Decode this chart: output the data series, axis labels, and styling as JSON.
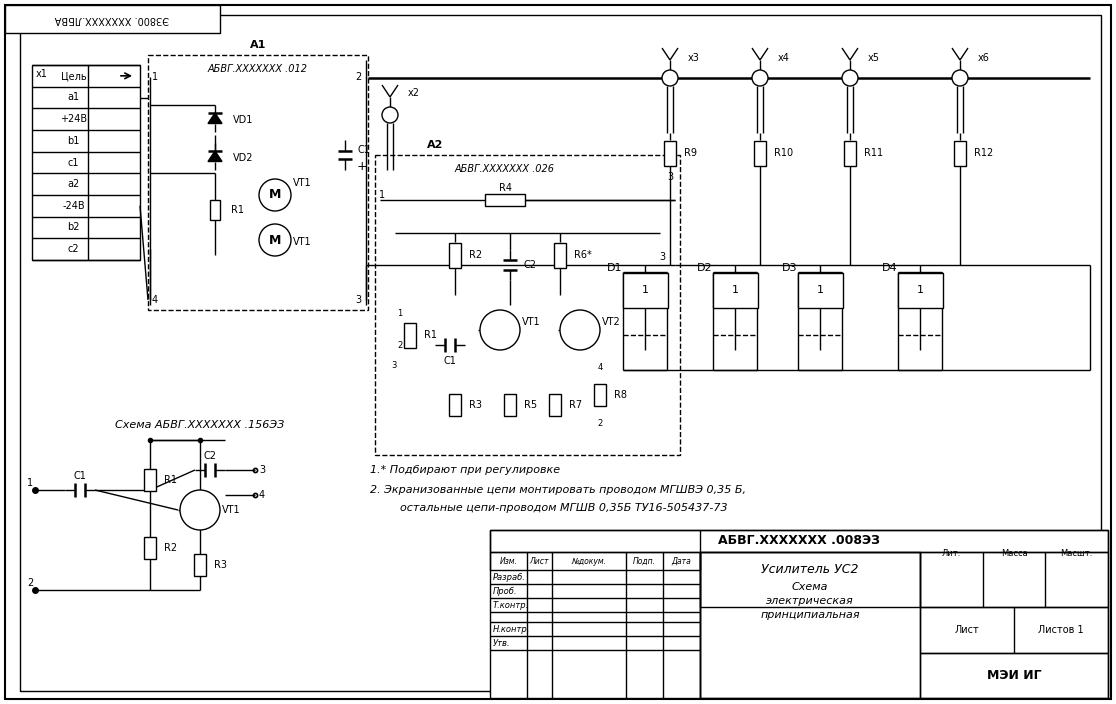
{
  "bg_color": "#ffffff",
  "line_color": "#000000",
  "fig_width": 11.16,
  "fig_height": 7.04,
  "title_box": "АБВГ.XXXXXXX .008ЭЗ",
  "title_stamp_top": "ЭЗ800. XXXXXXX.ЛБВА",
  "notes_line1": "1.* Подбирают при регулировке",
  "notes_line2": "2. Экранизованные цепи монтировать проводом МГШВЭ 0,35 Б,",
  "notes_line3": "остальные цепи-проводом МГШВ 0,35Б ТУ16-505437-73",
  "stamp_product": "Усилитель УС2",
  "stamp_type1": "Схема",
  "stamp_type2": "электрическая",
  "stamp_type3": "принципиальная",
  "stamp_org": "МЭИ ИГ",
  "stamp_sheet": "Лист",
  "stamp_sheets": "Листов 1",
  "stamp_lit": "Лит.",
  "stamp_mass": "Масса",
  "stamp_scale": "Масшт.",
  "sub_schema_title": "Схема АБВГ.XXXXXXX .156ЭЗ",
  "a1_label": "A1",
  "a1_sub": "АБВГ.XXXXXXX .012",
  "a2_label": "A2",
  "a2_sub": "АБВГ.XXXXXXX .026",
  "col_headers": [
    "Изм.",
    "Лист",
    "№докум.",
    "Подп.",
    "Дата"
  ],
  "row_labels": [
    "Разраб.",
    "Проб.",
    "Т.контр.",
    "",
    "Н.контр.",
    "Утв."
  ]
}
